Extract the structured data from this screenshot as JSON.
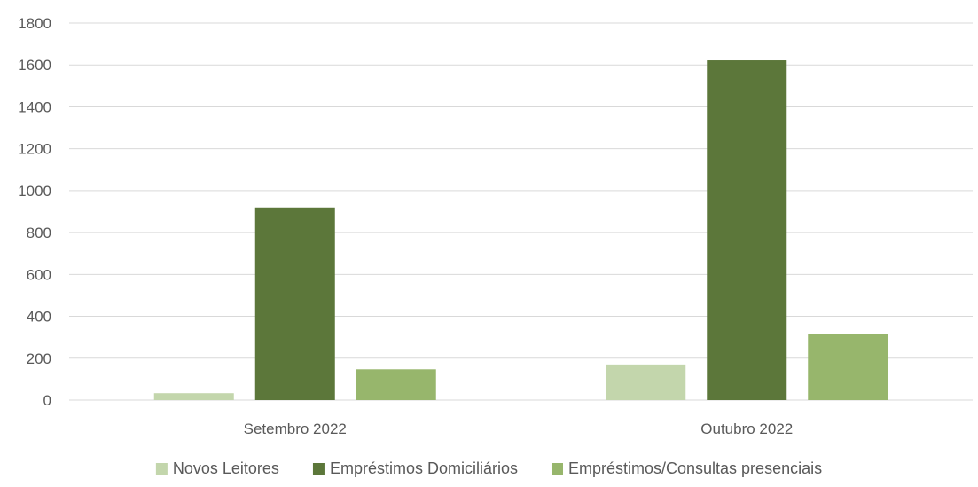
{
  "chart_data": {
    "type": "bar",
    "title": "",
    "xlabel": "",
    "ylabel": "",
    "ylim": [
      0,
      1800
    ],
    "yticks": [
      0,
      200,
      400,
      600,
      800,
      1000,
      1200,
      1400,
      1600,
      1800
    ],
    "grid": true,
    "legend_position": "bottom",
    "categories": [
      "Setembro 2022",
      "Outubro 2022"
    ],
    "series": [
      {
        "name": "Novos Leitores",
        "color": "#c3d6ac",
        "values": [
          33,
          170
        ]
      },
      {
        "name": "Empréstimos Domiciliários",
        "color": "#5c773a",
        "values": [
          920,
          1622
        ]
      },
      {
        "name": "Empréstimos/Consultas presenciais",
        "color": "#97b66c",
        "values": [
          147,
          315
        ]
      }
    ]
  }
}
